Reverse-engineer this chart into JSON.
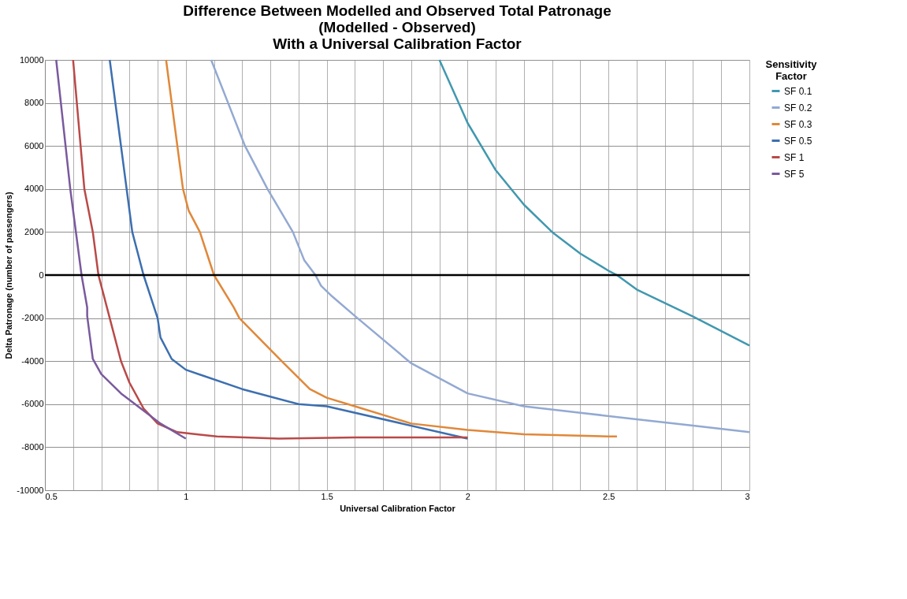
{
  "chart_data": {
    "type": "line",
    "title": "Difference Between Modelled and Observed Total Patronage\n(Modelled - Observed)\nWith a Universal Calibration Factor",
    "xlabel": "Universal Calibration Factor",
    "ylabel": "Delta Patronage (number of passengers)",
    "legend_title": "Sensitivity\nFactor",
    "xlim": [
      0.5,
      3
    ],
    "ylim": [
      -10000,
      10000
    ],
    "xticks": [
      0.5,
      {
        "value": 0.6,
        "label": null
      },
      {
        "value": 0.7,
        "label": null
      },
      {
        "value": 0.8,
        "label": null
      },
      {
        "value": 0.9,
        "label": null
      },
      1,
      {
        "value": 1.1,
        "label": null
      },
      {
        "value": 1.2,
        "label": null
      },
      {
        "value": 1.3,
        "label": null
      },
      {
        "value": 1.4,
        "label": null
      },
      1.5,
      {
        "value": 1.6,
        "label": null
      },
      {
        "value": 1.7,
        "label": null
      },
      {
        "value": 1.8,
        "label": null
      },
      {
        "value": 1.9,
        "label": null
      },
      2,
      {
        "value": 2.1,
        "label": null
      },
      {
        "value": 2.2,
        "label": null
      },
      {
        "value": 2.3,
        "label": null
      },
      {
        "value": 2.4,
        "label": null
      },
      2.5,
      {
        "value": 2.6,
        "label": null
      },
      {
        "value": 2.7,
        "label": null
      },
      {
        "value": 2.8,
        "label": null
      },
      {
        "value": 2.9,
        "label": null
      },
      3
    ],
    "yticks": [
      -10000,
      -8000,
      -6000,
      -4000,
      -2000,
      0,
      2000,
      4000,
      6000,
      8000,
      10000
    ],
    "grid": true,
    "legend": "right",
    "marker": "none",
    "line_style": "solid",
    "ref_lines": [
      {
        "axis": "y",
        "value": 0,
        "color": "#000000"
      }
    ],
    "series": [
      {
        "name": "SF 0.1",
        "color": "#4198af",
        "x": [
          1.9,
          2.0,
          2.1,
          2.2,
          2.3,
          2.4,
          2.5,
          2.53,
          2.6,
          2.8,
          3.0
        ],
        "values": [
          10000,
          7070,
          4870,
          3270,
          2000,
          1000,
          200,
          0,
          -670,
          -1930,
          -3270
        ]
      },
      {
        "name": "SF 0.2",
        "color": "#93a9d2",
        "x": [
          1.09,
          1.15,
          1.21,
          1.29,
          1.38,
          1.42,
          1.46,
          1.48,
          1.52,
          1.6,
          1.8,
          2.0,
          2.2,
          2.4,
          2.6,
          2.8,
          3.0
        ],
        "values": [
          10000,
          8000,
          6000,
          4000,
          2000,
          700,
          0,
          -500,
          -1000,
          -1900,
          -4100,
          -5500,
          -6100,
          -6400,
          -6700,
          -7000,
          -7300
        ]
      },
      {
        "name": "SF 0.3",
        "color": "#e0883a",
        "x": [
          0.93,
          0.99,
          1.01,
          1.05,
          1.1,
          1.17,
          1.19,
          1.34,
          1.44,
          1.5,
          1.6,
          1.8,
          2.0,
          2.2,
          2.5,
          2.53
        ],
        "values": [
          10000,
          4000,
          3000,
          2000,
          0,
          -1500,
          -2000,
          -4000,
          -5300,
          -5700,
          -6100,
          -6900,
          -7200,
          -7400,
          -7500,
          -7500
        ]
      },
      {
        "name": "SF 0.5",
        "color": "#3d6fb0",
        "x": [
          0.73,
          0.79,
          0.81,
          0.85,
          0.9,
          0.91,
          0.95,
          1.0,
          1.2,
          1.4,
          1.5,
          2.0
        ],
        "values": [
          10000,
          4000,
          2000,
          0,
          -2000,
          -2900,
          -3900,
          -4400,
          -5300,
          -6000,
          -6100,
          -7600
        ]
      },
      {
        "name": "SF 1",
        "color": "#b94a48",
        "x": [
          0.6,
          0.64,
          0.67,
          0.69,
          0.73,
          0.77,
          0.8,
          0.85,
          0.9,
          0.97,
          1.11,
          1.33,
          1.6,
          2.0
        ],
        "values": [
          10000,
          4000,
          2000,
          0,
          -2000,
          -4000,
          -5000,
          -6200,
          -6900,
          -7300,
          -7500,
          -7600,
          -7550,
          -7550
        ]
      },
      {
        "name": "SF 5",
        "color": "#7a5a9e",
        "x": [
          0.54,
          0.59,
          0.63,
          0.65,
          0.65,
          0.66,
          0.67,
          0.7,
          0.77,
          0.84,
          0.91,
          1.0
        ],
        "values": [
          10000,
          4000,
          0,
          -1500,
          -1900,
          -2900,
          -3900,
          -4600,
          -5500,
          -6200,
          -6900,
          -7600
        ]
      }
    ]
  }
}
